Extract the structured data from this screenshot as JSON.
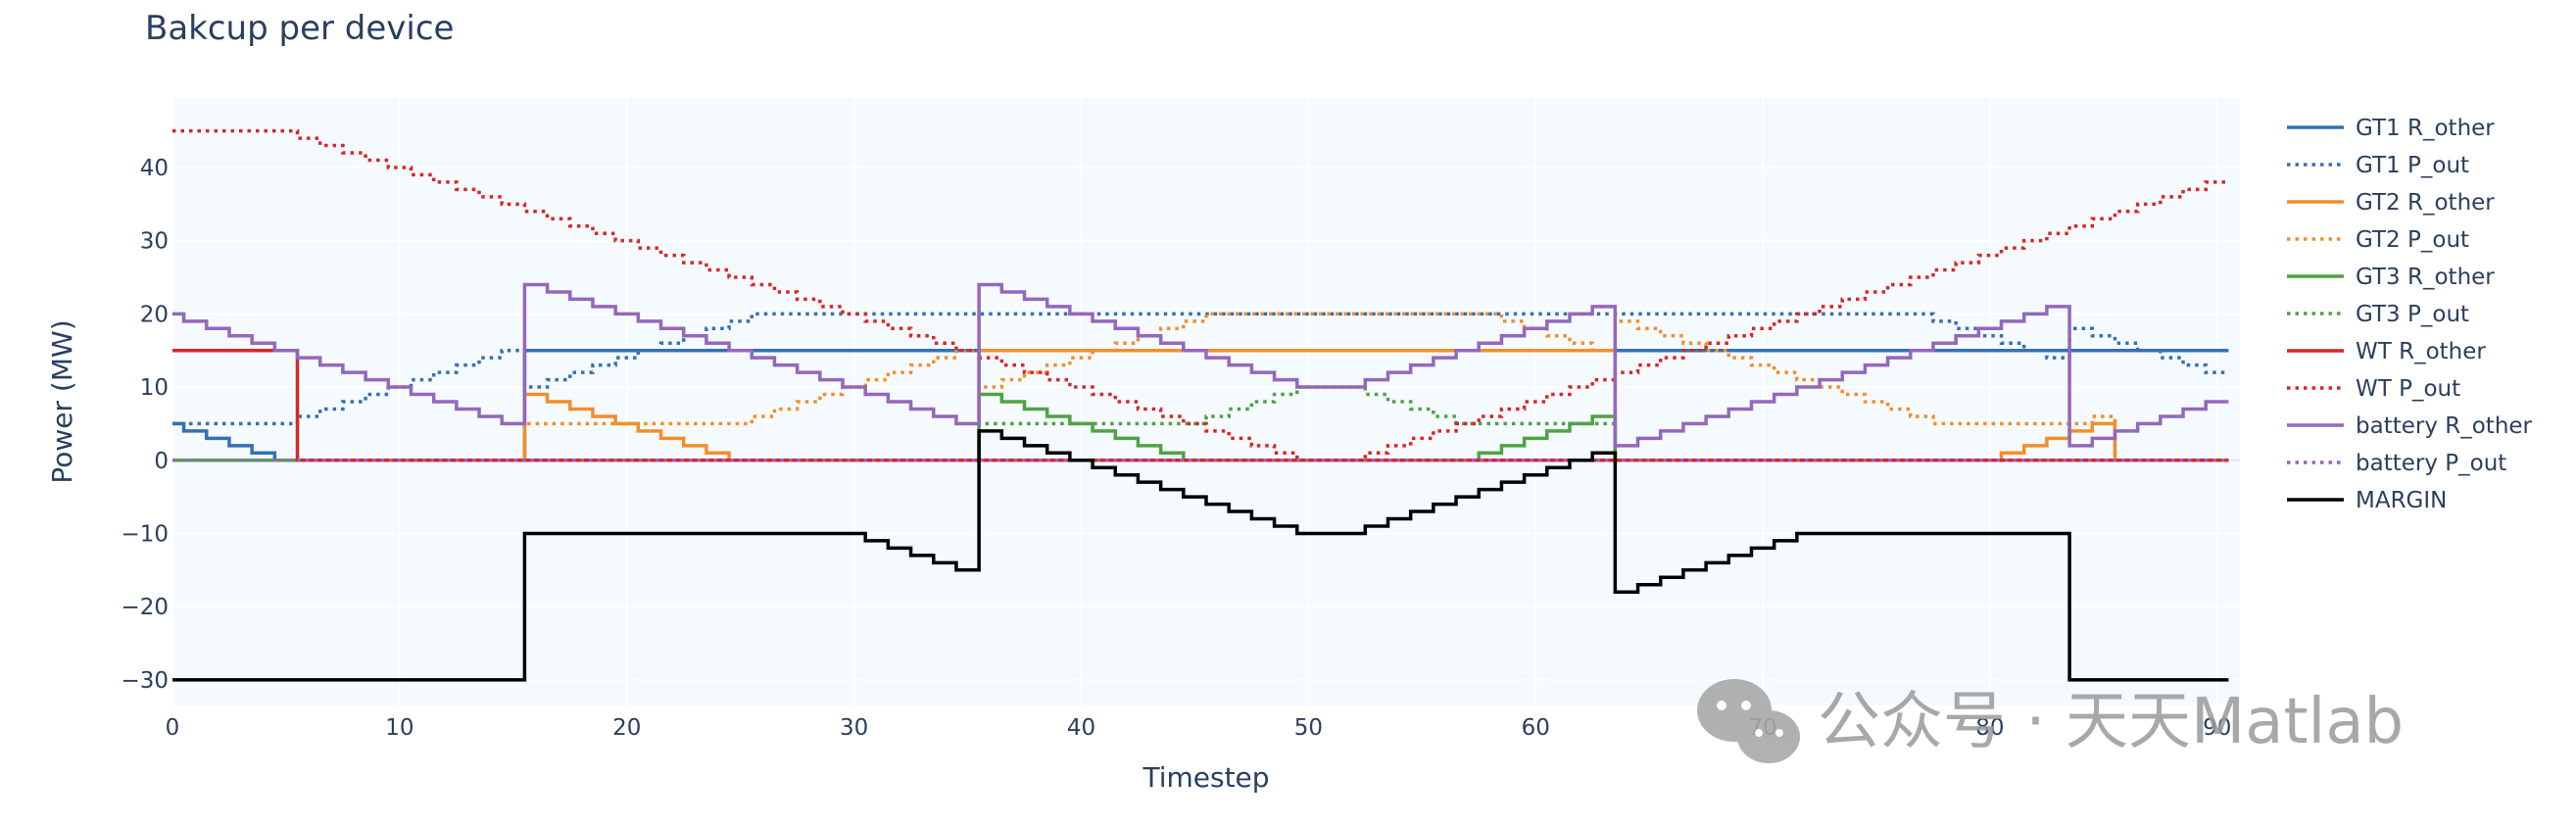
{
  "chart_data": {
    "type": "line",
    "line_shape": "step",
    "title": "Bakcup per device",
    "xlabel": "Timestep",
    "ylabel": "Power (MW)",
    "xlim": [
      0,
      91
    ],
    "ylim": [
      -33.5,
      49.5
    ],
    "x_ticks": [
      0,
      10,
      20,
      30,
      40,
      50,
      60,
      70,
      80,
      90
    ],
    "y_ticks": [
      -30,
      -20,
      -10,
      0,
      10,
      20,
      30,
      40
    ],
    "x_tick_labels": [
      "0",
      "10",
      "20",
      "30",
      "40",
      "50",
      "60",
      "70",
      "80",
      "90"
    ],
    "y_tick_labels": [
      "−30",
      "−20",
      "−10",
      "0",
      "10",
      "20",
      "30",
      "40"
    ],
    "grid": true,
    "background": "#f5faff",
    "legend_position": "right",
    "x": [
      0,
      1,
      2,
      3,
      4,
      5,
      6,
      7,
      8,
      9,
      10,
      11,
      12,
      13,
      14,
      15,
      16,
      17,
      18,
      19,
      20,
      21,
      22,
      23,
      24,
      25,
      26,
      27,
      28,
      29,
      30,
      31,
      32,
      33,
      34,
      35,
      36,
      37,
      38,
      39,
      40,
      41,
      42,
      43,
      44,
      45,
      46,
      47,
      48,
      49,
      50,
      51,
      52,
      53,
      54,
      55,
      56,
      57,
      58,
      59,
      60,
      61,
      62,
      63,
      64,
      65,
      66,
      67,
      68,
      69,
      70,
      71,
      72,
      73,
      74,
      75,
      76,
      77,
      78,
      79,
      80,
      81,
      82,
      83,
      84,
      85,
      86,
      87,
      88,
      89,
      90
    ],
    "series": [
      {
        "name": "GT1 R_other",
        "color": "#3470b3",
        "dash": "solid",
        "values": [
          5,
          4,
          3,
          2,
          1,
          0,
          0,
          0,
          0,
          0,
          0,
          0,
          0,
          0,
          0,
          0,
          15,
          15,
          15,
          15,
          15,
          15,
          15,
          15,
          15,
          15,
          15,
          15,
          15,
          15,
          15,
          15,
          15,
          15,
          15,
          15,
          15,
          15,
          15,
          15,
          15,
          15,
          15,
          15,
          15,
          15,
          15,
          15,
          15,
          15,
          15,
          15,
          15,
          15,
          15,
          15,
          15,
          15,
          15,
          15,
          15,
          15,
          15,
          15,
          15,
          15,
          15,
          15,
          15,
          15,
          15,
          15,
          15,
          15,
          15,
          15,
          15,
          15,
          15,
          15,
          15,
          15,
          15,
          15,
          15,
          15,
          15,
          15,
          15,
          15,
          15
        ]
      },
      {
        "name": "GT1 P_out",
        "color": "#3470b3",
        "dash": "dot",
        "values": [
          5,
          5,
          5,
          5,
          5,
          5,
          6,
          7,
          8,
          9,
          10,
          11,
          12,
          13,
          14,
          15,
          10,
          11,
          12,
          13,
          14,
          15,
          16,
          17,
          18,
          19,
          20,
          20,
          20,
          20,
          20,
          20,
          20,
          20,
          20,
          20,
          20,
          20,
          20,
          20,
          20,
          20,
          20,
          20,
          20,
          20,
          20,
          20,
          20,
          20,
          20,
          20,
          20,
          20,
          20,
          20,
          20,
          20,
          20,
          20,
          20,
          20,
          20,
          20,
          20,
          20,
          20,
          20,
          20,
          20,
          20,
          20,
          20,
          20,
          20,
          20,
          20,
          20,
          19,
          18,
          17,
          16,
          15,
          14,
          18,
          17,
          16,
          15,
          14,
          13,
          12
        ]
      },
      {
        "name": "GT2 R_other",
        "color": "#f28e2b",
        "dash": "solid",
        "values": [
          0,
          0,
          0,
          0,
          0,
          0,
          0,
          0,
          0,
          0,
          0,
          0,
          0,
          0,
          0,
          0,
          9,
          8,
          7,
          6,
          5,
          4,
          3,
          2,
          1,
          0,
          0,
          0,
          0,
          0,
          0,
          0,
          0,
          0,
          0,
          0,
          15,
          15,
          15,
          15,
          15,
          15,
          15,
          15,
          15,
          15,
          15,
          15,
          15,
          15,
          15,
          15,
          15,
          15,
          15,
          15,
          15,
          15,
          15,
          15,
          15,
          15,
          15,
          15,
          0,
          0,
          0,
          0,
          0,
          0,
          0,
          0,
          0,
          0,
          0,
          0,
          0,
          0,
          0,
          0,
          0,
          1,
          2,
          3,
          4,
          5,
          0,
          0,
          0,
          0,
          0
        ]
      },
      {
        "name": "GT2 P_out",
        "color": "#f28e2b",
        "dash": "dot",
        "values": [
          0,
          0,
          0,
          0,
          0,
          0,
          0,
          0,
          0,
          0,
          0,
          0,
          0,
          0,
          0,
          0,
          5,
          5,
          5,
          5,
          5,
          5,
          5,
          5,
          5,
          5,
          6,
          7,
          8,
          9,
          10,
          11,
          12,
          13,
          14,
          15,
          10,
          11,
          12,
          13,
          14,
          15,
          16,
          17,
          18,
          19,
          20,
          20,
          20,
          20,
          20,
          20,
          20,
          20,
          20,
          20,
          20,
          20,
          20,
          19,
          18,
          17,
          16,
          15,
          19,
          18,
          17,
          16,
          15,
          14,
          13,
          12,
          11,
          10,
          9,
          8,
          7,
          6,
          5,
          5,
          5,
          5,
          5,
          5,
          5,
          6,
          0,
          0,
          0,
          0,
          0
        ]
      },
      {
        "name": "GT3 R_other",
        "color": "#4ea343",
        "dash": "solid",
        "values": [
          0,
          0,
          0,
          0,
          0,
          0,
          0,
          0,
          0,
          0,
          0,
          0,
          0,
          0,
          0,
          0,
          0,
          0,
          0,
          0,
          0,
          0,
          0,
          0,
          0,
          0,
          0,
          0,
          0,
          0,
          0,
          0,
          0,
          0,
          0,
          0,
          9,
          8,
          7,
          6,
          5,
          4,
          3,
          2,
          1,
          0,
          0,
          0,
          0,
          0,
          0,
          0,
          0,
          0,
          0,
          0,
          0,
          0,
          1,
          2,
          3,
          4,
          5,
          6,
          0,
          0,
          0,
          0,
          0,
          0,
          0,
          0,
          0,
          0,
          0,
          0,
          0,
          0,
          0,
          0,
          0,
          0,
          0,
          0,
          0,
          0,
          0,
          0,
          0,
          0,
          0
        ]
      },
      {
        "name": "GT3 P_out",
        "color": "#4ea343",
        "dash": "dot",
        "values": [
          0,
          0,
          0,
          0,
          0,
          0,
          0,
          0,
          0,
          0,
          0,
          0,
          0,
          0,
          0,
          0,
          0,
          0,
          0,
          0,
          0,
          0,
          0,
          0,
          0,
          0,
          0,
          0,
          0,
          0,
          0,
          0,
          0,
          0,
          0,
          0,
          5,
          5,
          5,
          5,
          5,
          5,
          5,
          5,
          5,
          5,
          6,
          7,
          8,
          9,
          10,
          10,
          10,
          9,
          8,
          7,
          6,
          5,
          5,
          5,
          5,
          5,
          5,
          5,
          0,
          0,
          0,
          0,
          0,
          0,
          0,
          0,
          0,
          0,
          0,
          0,
          0,
          0,
          0,
          0,
          0,
          0,
          0,
          0,
          0,
          0,
          0,
          0,
          0,
          0,
          0
        ]
      },
      {
        "name": "WT R_other",
        "color": "#d62728",
        "dash": "solid",
        "values": [
          15,
          15,
          15,
          15,
          15,
          15,
          0,
          0,
          0,
          0,
          0,
          0,
          0,
          0,
          0,
          0,
          0,
          0,
          0,
          0,
          0,
          0,
          0,
          0,
          0,
          0,
          0,
          0,
          0,
          0,
          0,
          0,
          0,
          0,
          0,
          0,
          0,
          0,
          0,
          0,
          0,
          0,
          0,
          0,
          0,
          0,
          0,
          0,
          0,
          0,
          0,
          0,
          0,
          0,
          0,
          0,
          0,
          0,
          0,
          0,
          0,
          0,
          0,
          0,
          0,
          0,
          0,
          0,
          0,
          0,
          0,
          0,
          0,
          0,
          0,
          0,
          0,
          0,
          0,
          0,
          0,
          0,
          0,
          0,
          0,
          0,
          0,
          0,
          0,
          0,
          0
        ]
      },
      {
        "name": "WT P_out",
        "color": "#d62728",
        "dash": "dot",
        "values": [
          45,
          45,
          45,
          45,
          45,
          45,
          44,
          43,
          42,
          41,
          40,
          39,
          38,
          37,
          36,
          35,
          34,
          33,
          32,
          31,
          30,
          29,
          28,
          27,
          26,
          25,
          24,
          23,
          22,
          21,
          20,
          19,
          18,
          17,
          16,
          15,
          14,
          13,
          12,
          11,
          10,
          9,
          8,
          7,
          6,
          5,
          4,
          3,
          2,
          1,
          0,
          0,
          0,
          1,
          2,
          3,
          4,
          5,
          6,
          7,
          8,
          9,
          10,
          11,
          12,
          13,
          14,
          15,
          16,
          17,
          18,
          19,
          20,
          21,
          22,
          23,
          24,
          25,
          26,
          27,
          28,
          29,
          30,
          31,
          32,
          33,
          34,
          35,
          36,
          37,
          38
        ]
      },
      {
        "name": "battery R_other",
        "color": "#9467bd",
        "dash": "solid",
        "values": [
          20,
          19,
          18,
          17,
          16,
          15,
          14,
          13,
          12,
          11,
          10,
          9,
          8,
          7,
          6,
          5,
          24,
          23,
          22,
          21,
          20,
          19,
          18,
          17,
          16,
          15,
          14,
          13,
          12,
          11,
          10,
          9,
          8,
          7,
          6,
          5,
          24,
          23,
          22,
          21,
          20,
          19,
          18,
          17,
          16,
          15,
          14,
          13,
          12,
          11,
          10,
          10,
          10,
          11,
          12,
          13,
          14,
          15,
          16,
          17,
          18,
          19,
          20,
          21,
          2,
          3,
          4,
          5,
          6,
          7,
          8,
          9,
          10,
          11,
          12,
          13,
          14,
          15,
          16,
          17,
          18,
          19,
          20,
          21,
          2,
          3,
          4,
          5,
          6,
          7,
          8
        ]
      },
      {
        "name": "battery P_out",
        "color": "#9467bd",
        "dash": "dot",
        "values": [
          0,
          0,
          0,
          0,
          0,
          0,
          0,
          0,
          0,
          0,
          0,
          0,
          0,
          0,
          0,
          0,
          0,
          0,
          0,
          0,
          0,
          0,
          0,
          0,
          0,
          0,
          0,
          0,
          0,
          0,
          0,
          0,
          0,
          0,
          0,
          0,
          0,
          0,
          0,
          0,
          0,
          0,
          0,
          0,
          0,
          0,
          0,
          0,
          0,
          0,
          0,
          0,
          0,
          0,
          0,
          0,
          0,
          0,
          0,
          0,
          0,
          0,
          0,
          0,
          0,
          0,
          0,
          0,
          0,
          0,
          0,
          0,
          0,
          0,
          0,
          0,
          0,
          0,
          0,
          0,
          0,
          0,
          0,
          0,
          0,
          0,
          0,
          0,
          0,
          0,
          0
        ]
      },
      {
        "name": "MARGIN",
        "color": "#000000",
        "dash": "solid",
        "values": [
          -30,
          -30,
          -30,
          -30,
          -30,
          -30,
          -30,
          -30,
          -30,
          -30,
          -30,
          -30,
          -30,
          -30,
          -30,
          -30,
          -10,
          -10,
          -10,
          -10,
          -10,
          -10,
          -10,
          -10,
          -10,
          -10,
          -10,
          -10,
          -10,
          -10,
          -10,
          -11,
          -12,
          -13,
          -14,
          -15,
          4,
          3,
          2,
          1,
          0,
          -1,
          -2,
          -3,
          -4,
          -5,
          -6,
          -7,
          -8,
          -9,
          -10,
          -10,
          -10,
          -9,
          -8,
          -7,
          -6,
          -5,
          -4,
          -3,
          -2,
          -1,
          0,
          1,
          -18,
          -17,
          -16,
          -15,
          -14,
          -13,
          -12,
          -11,
          -10,
          -10,
          -10,
          -10,
          -10,
          -10,
          -10,
          -10,
          -10,
          -10,
          -10,
          -10,
          -30,
          -30,
          -30,
          -30,
          -30,
          -30,
          -30
        ]
      }
    ]
  },
  "watermark": {
    "text": "公众号 · 天天Matlab",
    "icon": "wechat-icon"
  }
}
